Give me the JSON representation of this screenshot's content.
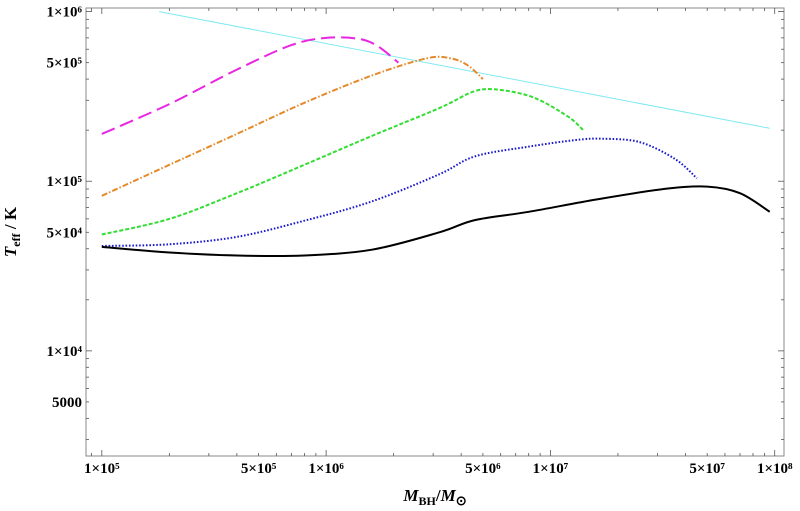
{
  "chart_data": {
    "type": "line",
    "xscale": "log",
    "yscale": "log",
    "xlim": [
      85000,
      110000000
    ],
    "ylim": [
      2400,
      1050000
    ],
    "xlabel": {
      "symbol": "M",
      "sub": "BH",
      "sep": "/",
      "symbol2": "M",
      "sub2": "⊙"
    },
    "ylabel": {
      "symbol": "T",
      "sub": "eff",
      "rest": " / K"
    },
    "x_ticks": [
      {
        "value": 100000,
        "label": "1×10⁵"
      },
      {
        "value": 500000,
        "label": "5×10⁵"
      },
      {
        "value": 1000000,
        "label": "1×10⁶"
      },
      {
        "value": 5000000,
        "label": "5×10⁶"
      },
      {
        "value": 10000000,
        "label": "1×10⁷"
      },
      {
        "value": 50000000,
        "label": "5×10⁷"
      },
      {
        "value": 100000000,
        "label": "1×10⁸"
      }
    ],
    "y_ticks": [
      {
        "value": 1000000,
        "label": "1×10⁶"
      },
      {
        "value": 500000,
        "label": "5×10⁵"
      },
      {
        "value": 100000,
        "label": "1×10⁵"
      },
      {
        "value": 50000,
        "label": "5×10⁴"
      },
      {
        "value": 10000,
        "label": "1×10⁴"
      },
      {
        "value": 5000,
        "label": "5000"
      }
    ],
    "series": [
      {
        "name": "cyan-reference",
        "color": "#7fe9f2",
        "dash": "",
        "x": [
          180000,
          95000000
        ],
        "y": [
          1000000,
          205000
        ]
      },
      {
        "name": "magenta-dashed",
        "color": "#e826e3",
        "dash": "14,6",
        "x": [
          100000,
          200000,
          400000,
          700000,
          1000000,
          1400000,
          1700000,
          2100000
        ],
        "y": [
          190000,
          285000,
          455000,
          635000,
          700000,
          690000,
          625000,
          500000
        ]
      },
      {
        "name": "orange-dashdot",
        "color": "#e58a2a",
        "dash": "6,2,1.5,2",
        "x": [
          100000,
          200000,
          400000,
          800000,
          1600000,
          2800000,
          3600000,
          4300000,
          5000000
        ],
        "y": [
          82000,
          125000,
          190000,
          290000,
          420000,
          530000,
          530000,
          480000,
          400000
        ]
      },
      {
        "name": "green-dashed",
        "color": "#33dd33",
        "dash": "4,2",
        "x": [
          100000,
          200000,
          400000,
          800000,
          1600000,
          3200000,
          4600000,
          6000000,
          8500000,
          12000000,
          14000000
        ],
        "y": [
          48500,
          60000,
          85000,
          125000,
          185000,
          270000,
          340000,
          345000,
          310000,
          240000,
          200000
        ]
      },
      {
        "name": "blue-dotted",
        "color": "#1a1acc",
        "dash": "1.6,1.8",
        "x": [
          100000,
          200000,
          400000,
          800000,
          1600000,
          3200000,
          4600000,
          8000000,
          13000000,
          17000000,
          25000000,
          36000000,
          45000000
        ],
        "y": [
          41500,
          42500,
          47000,
          58500,
          76000,
          110000,
          140000,
          160000,
          175000,
          178000,
          170000,
          135000,
          104000
        ]
      },
      {
        "name": "black-solid",
        "color": "#000000",
        "dash": "",
        "x": [
          100000,
          200000,
          400000,
          800000,
          1600000,
          3200000,
          4600000,
          8000000,
          16000000,
          32000000,
          50000000,
          70000000,
          95000000
        ],
        "y": [
          41000,
          38000,
          36500,
          36500,
          39500,
          50000,
          59000,
          66000,
          78000,
          90000,
          93000,
          85000,
          66000
        ]
      }
    ]
  }
}
